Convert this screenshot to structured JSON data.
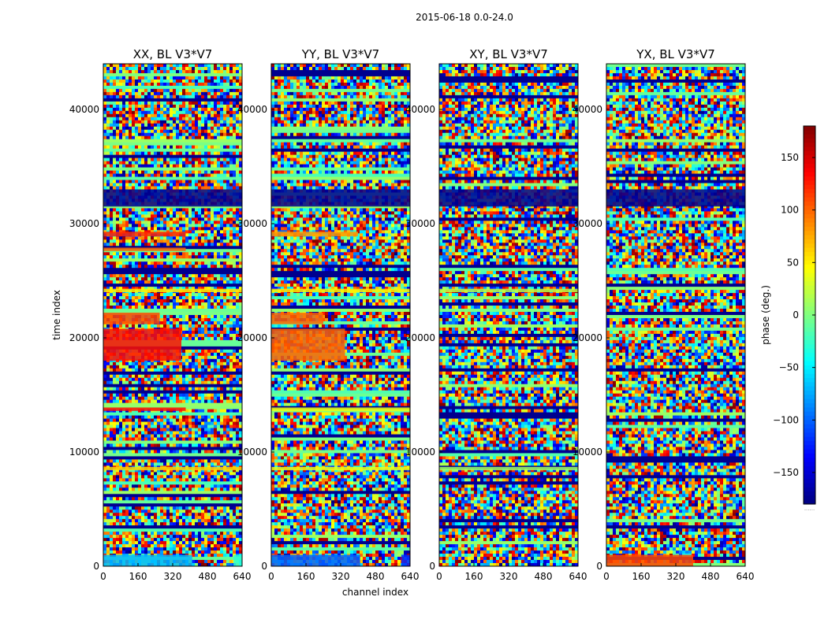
{
  "suptitle": "2015-06-18 0.0-24.0",
  "chart_data": {
    "type": "heatmap",
    "colormap": "jet",
    "xlabel": "channel index",
    "ylabel": "time index",
    "xlim": [
      0,
      640
    ],
    "ylim": [
      0,
      44000
    ],
    "xticks": [
      0,
      160,
      320,
      480,
      640
    ],
    "yticks": [
      0,
      10000,
      20000,
      30000,
      40000
    ],
    "colorbar": {
      "label": "phase (deg.)",
      "range": [
        -180,
        180
      ],
      "ticks": [
        150,
        100,
        50,
        0,
        -50,
        -100,
        -150
      ],
      "tick_labels": [
        "150",
        "100",
        "50",
        "0",
        "−50",
        "−100",
        "−150"
      ],
      "footer": "......"
    },
    "panels": [
      {
        "title": "XX, BL V3*V7",
        "features": [
          {
            "t0": 31500,
            "t1": 33000,
            "phase": -175
          },
          {
            "t0": 28900,
            "t1": 29300,
            "phase": 120,
            "ch1": 380
          },
          {
            "t0": 27600,
            "t1": 27900,
            "phase": 100,
            "ch1": 380
          },
          {
            "t0": 24000,
            "t1": 24300,
            "phase": 50
          },
          {
            "t0": 21200,
            "t1": 22200,
            "phase": 110,
            "ch1": 260
          },
          {
            "t0": 18000,
            "t1": 20800,
            "phase": 130,
            "ch1": 360
          },
          {
            "t0": 13600,
            "t1": 13900,
            "phase": 130,
            "ch1": 380
          },
          {
            "t0": 8400,
            "t1": 8700,
            "phase": 60
          },
          {
            "t0": 0,
            "t1": 1000,
            "phase": -70,
            "ch1": 410
          },
          {
            "t0": 0,
            "t1": 1000,
            "phase": -30,
            "ch0": 600
          }
        ]
      },
      {
        "title": "YY, BL V3*V7",
        "features": [
          {
            "t0": 31500,
            "t1": 33000,
            "phase": -175
          },
          {
            "t0": 28900,
            "t1": 29300,
            "phase": 80,
            "ch1": 400
          },
          {
            "t0": 24000,
            "t1": 24300,
            "phase": 50
          },
          {
            "t0": 21200,
            "t1": 22200,
            "phase": 100,
            "ch1": 240
          },
          {
            "t0": 18000,
            "t1": 20800,
            "phase": 100,
            "ch1": 340
          },
          {
            "t0": 13600,
            "t1": 13900,
            "phase": 40
          },
          {
            "t0": 8400,
            "t1": 8700,
            "phase": 40
          },
          {
            "t0": 0,
            "t1": 1000,
            "phase": -100,
            "ch1": 410
          },
          {
            "t0": 0,
            "t1": 1000,
            "phase": -120,
            "ch0": 600
          }
        ]
      },
      {
        "title": "XY, BL V3*V7",
        "features": [
          {
            "t0": 31500,
            "t1": 33000,
            "phase": -175
          },
          {
            "t0": 24000,
            "t1": 24300,
            "phase": 20
          },
          {
            "t0": 8400,
            "t1": 8700,
            "phase": 10
          }
        ]
      },
      {
        "title": "YX, BL V3*V7",
        "features": [
          {
            "t0": 31500,
            "t1": 33000,
            "phase": -175
          },
          {
            "t0": 0,
            "t1": 1000,
            "phase": 110,
            "ch1": 400
          }
        ]
      }
    ]
  }
}
